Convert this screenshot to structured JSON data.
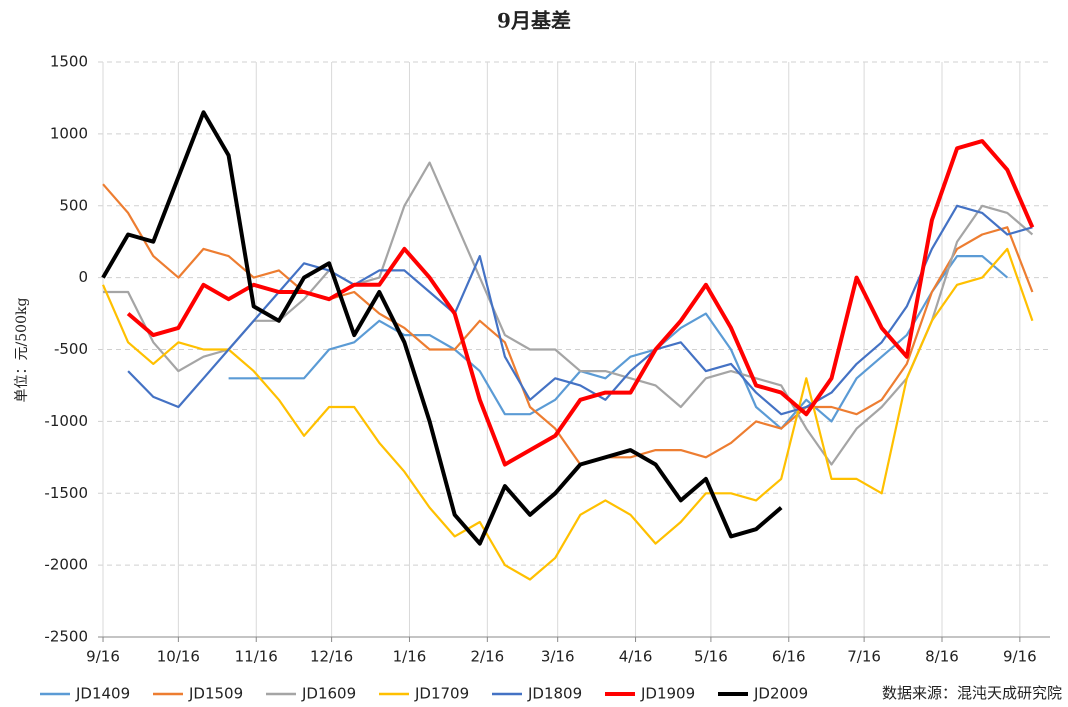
{
  "chart_data": {
    "type": "line",
    "title": "9月基差",
    "y_label": "单位：元/500kg",
    "source": "数据来源：混沌天成研究院",
    "x": [
      0,
      10,
      20,
      30,
      40,
      50,
      60,
      70,
      80,
      90,
      100,
      110,
      120,
      130,
      140,
      150,
      160,
      170,
      180,
      190,
      200,
      210,
      220,
      230,
      240,
      250,
      260,
      270,
      280,
      290,
      300,
      310,
      320,
      330,
      340,
      350,
      360,
      370
    ],
    "xlim": [
      -2,
      377
    ],
    "xticks": [
      {
        "value": 0,
        "label": "9/16"
      },
      {
        "value": 30,
        "label": "10/16"
      },
      {
        "value": 61,
        "label": "11/16"
      },
      {
        "value": 91,
        "label": "12/16"
      },
      {
        "value": 122,
        "label": "1/16"
      },
      {
        "value": 153,
        "label": "2/16"
      },
      {
        "value": 181,
        "label": "3/16"
      },
      {
        "value": 212,
        "label": "4/16"
      },
      {
        "value": 242,
        "label": "5/16"
      },
      {
        "value": 273,
        "label": "6/16"
      },
      {
        "value": 303,
        "label": "7/16"
      },
      {
        "value": 334,
        "label": "8/16"
      },
      {
        "value": 365,
        "label": "9/16"
      }
    ],
    "ylim": [
      -2500,
      1500
    ],
    "yticks": [
      -2500,
      -2000,
      -1500,
      -1000,
      -500,
      0,
      500,
      1000,
      1500
    ],
    "grid": true,
    "legend": "bottom",
    "series": [
      {
        "name": "JD1409",
        "color": "#5b9bd5",
        "values": [
          null,
          null,
          null,
          null,
          null,
          -700,
          -700,
          -700,
          -700,
          -500,
          -450,
          -300,
          -400,
          -400,
          -500,
          -650,
          -950,
          -950,
          -850,
          -650,
          -700,
          -550,
          -500,
          -350,
          -250,
          -500,
          -900,
          -1050,
          -850,
          -1000,
          -700,
          -550,
          -400,
          -100,
          150,
          150,
          0,
          null
        ]
      },
      {
        "name": "JD1509",
        "color": "#ed7d31",
        "values": [
          650,
          450,
          150,
          0,
          200,
          150,
          0,
          50,
          -100,
          -150,
          -100,
          -250,
          -350,
          -500,
          -500,
          -300,
          -450,
          -900,
          -1050,
          -1300,
          -1250,
          -1250,
          -1200,
          -1200,
          -1250,
          -1150,
          -1000,
          -1050,
          -900,
          -900,
          -950,
          -850,
          -600,
          -100,
          200,
          300,
          350,
          -100
        ]
      },
      {
        "name": "JD1609",
        "color": "#a5a5a5",
        "values": [
          -100,
          -100,
          -450,
          -650,
          -550,
          -500,
          -300,
          -300,
          -150,
          50,
          -50,
          0,
          500,
          800,
          400,
          0,
          -400,
          -500,
          -500,
          -650,
          -650,
          -700,
          -750,
          -900,
          -700,
          -650,
          -700,
          -750,
          -1050,
          -1300,
          -1050,
          -900,
          -700,
          -300,
          250,
          500,
          450,
          300
        ]
      },
      {
        "name": "JD1709",
        "color": "#ffc000",
        "values": [
          -50,
          -450,
          -600,
          -450,
          -500,
          -500,
          -650,
          -850,
          -1100,
          -900,
          -900,
          -1150,
          -1350,
          -1600,
          -1800,
          -1700,
          -2000,
          -2100,
          -1950,
          -1650,
          -1550,
          -1650,
          -1850,
          -1700,
          -1500,
          -1500,
          -1550,
          -1400,
          -700,
          -1400,
          -1400,
          -1500,
          -700,
          -300,
          -50,
          0,
          200,
          -300
        ]
      },
      {
        "name": "JD1809",
        "color": "#4472c4",
        "values": [
          null,
          -650,
          -830,
          -900,
          -700,
          -500,
          -300,
          -100,
          100,
          50,
          -50,
          50,
          50,
          -100,
          -250,
          150,
          -550,
          -850,
          -700,
          -750,
          -850,
          -650,
          -500,
          -450,
          -650,
          -600,
          -800,
          -950,
          -900,
          -800,
          -600,
          -450,
          -200,
          200,
          500,
          450,
          300,
          350
        ]
      },
      {
        "name": "JD1909",
        "color": "#ff0000",
        "values": [
          null,
          -250,
          -400,
          -350,
          -50,
          -150,
          -50,
          -100,
          -100,
          -150,
          -50,
          -50,
          200,
          0,
          -250,
          -850,
          -1300,
          -1200,
          -1100,
          -850,
          -800,
          -800,
          -500,
          -300,
          -50,
          -350,
          -750,
          -800,
          -950,
          -700,
          0,
          -350,
          -550,
          400,
          900,
          950,
          750,
          350
        ]
      },
      {
        "name": "JD2009",
        "color": "#000000",
        "values": [
          0,
          300,
          250,
          700,
          1150,
          850,
          -200,
          -300,
          0,
          100,
          -400,
          -100,
          -450,
          -1000,
          -1650,
          -1850,
          -1450,
          -1650,
          -1500,
          -1300,
          -1250,
          -1200,
          -1300,
          -1550,
          -1400,
          -1800,
          -1750,
          -1600,
          null,
          null,
          null,
          null,
          null,
          null,
          null,
          null,
          null,
          null
        ]
      }
    ]
  }
}
